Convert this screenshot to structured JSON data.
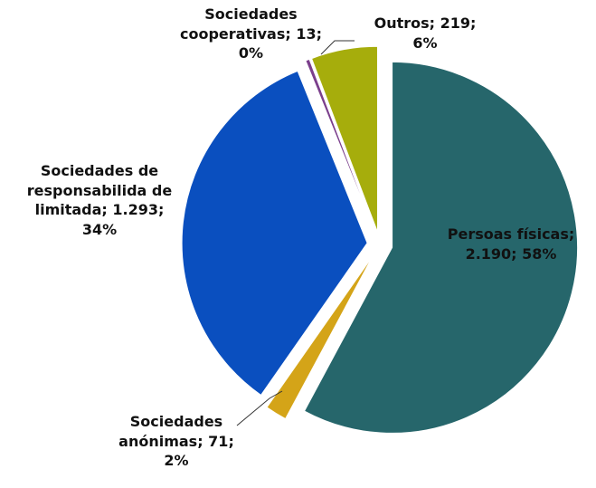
{
  "chart_data": {
    "type": "pie",
    "values": [
      2190,
      71,
      1293,
      13,
      219
    ],
    "value_labels": [
      "Persoas físicas; 2.190; 58%",
      "Sociedades anónimas; 71; 2%",
      "Sociedades de responsabilida de limitada; 1.293; 34%",
      "Sociedades cooperativas; 13; 0%",
      "Outros; 219; 6%"
    ],
    "colors": [
      "#26666b",
      "#d4a418",
      "#0a4fbf",
      "#7b3f8c",
      "#a6ad0c"
    ]
  }
}
